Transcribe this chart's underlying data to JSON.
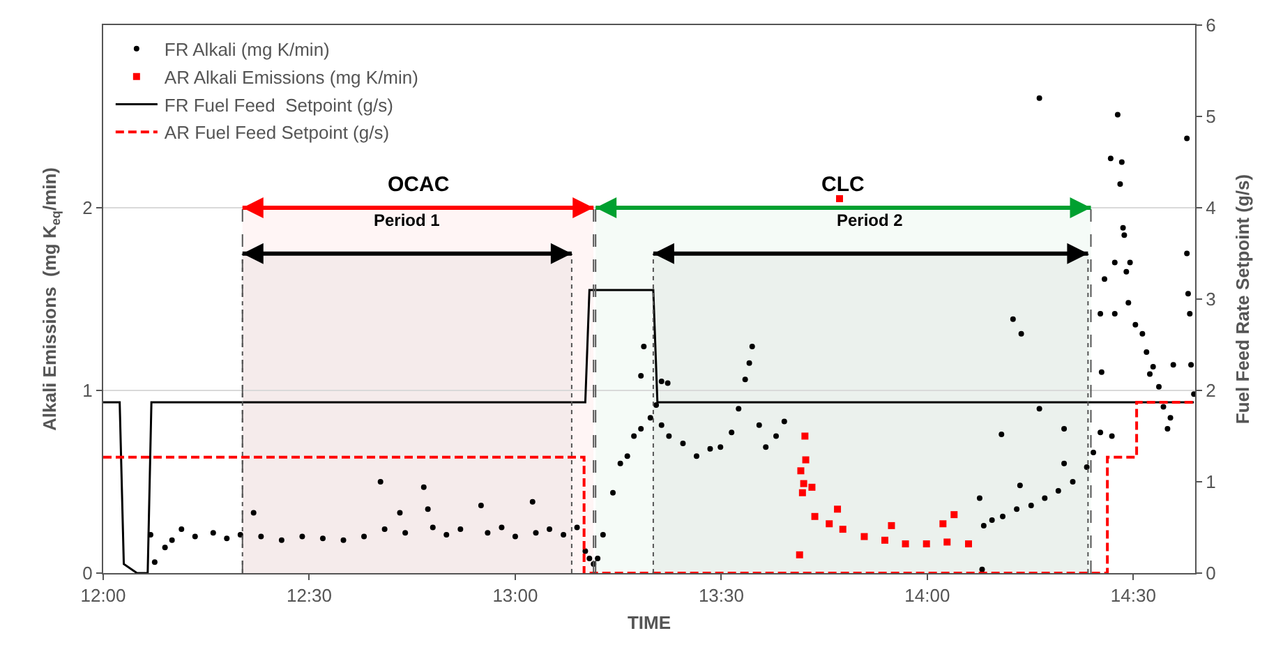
{
  "chart_data": {
    "type": "scatter",
    "xlabel": "TIME",
    "ylabel": "Alkali Emissions  (mg K$_{eq}$/min)",
    "y2label": "Fuel Feed Rate Setpoint (g/s)",
    "xlim": [
      12,
      14.65
    ],
    "xticks": [
      {
        "value": 12,
        "label": "12:00"
      },
      {
        "value": 12.5,
        "label": "12:30"
      },
      {
        "value": 13,
        "label": "13:00"
      },
      {
        "value": 13.5,
        "label": "13:30"
      },
      {
        "value": 14,
        "label": "14:00"
      },
      {
        "value": 14.5,
        "label": "14:30"
      }
    ],
    "ylim": [
      0,
      3
    ],
    "yticks": [
      0,
      1,
      2
    ],
    "y2lim": [
      0,
      6
    ],
    "y2ticks": [
      0,
      1,
      2,
      3,
      4,
      5,
      6
    ],
    "grid": "y",
    "legend": "top left",
    "bands": [
      {
        "axis": "x",
        "from": 12.338,
        "to": 13.19,
        "label": "OCAC",
        "color": "#ff0000"
      },
      {
        "axis": "x",
        "from": 13.195,
        "to": 14.397,
        "label": "CLC",
        "color": "#00a030"
      },
      {
        "axis": "x",
        "from": 12.338,
        "to": 13.137,
        "label": "Period 1"
      },
      {
        "axis": "x",
        "from": 13.335,
        "to": 14.39,
        "label": "Period 2"
      }
    ],
    "series": [
      {
        "name": "FR Alkali (mg K/min)",
        "marker": "circle",
        "color": "#000000",
        "x": [
          12.115,
          12.125,
          12.15,
          12.167,
          12.19,
          12.223,
          12.267,
          12.3,
          12.333,
          12.365,
          12.383,
          12.433,
          12.483,
          12.533,
          12.583,
          12.633,
          12.673,
          12.683,
          12.72,
          12.733,
          12.778,
          12.788,
          12.8,
          12.833,
          12.867,
          12.917,
          12.933,
          12.967,
          13.0,
          13.042,
          13.05,
          13.083,
          13.117,
          13.15,
          13.17,
          13.18,
          13.19,
          13.2,
          13.213,
          13.237,
          13.255,
          13.272,
          13.288,
          13.305,
          13.305,
          13.312,
          13.328,
          13.342,
          13.355,
          13.355,
          13.37,
          13.373,
          13.407,
          13.44,
          13.473,
          13.498,
          13.525,
          13.542,
          13.558,
          13.568,
          13.575,
          13.592,
          13.608,
          13.633,
          13.653,
          14.127,
          14.133,
          14.137,
          14.157,
          14.18,
          14.183,
          14.208,
          14.217,
          14.225,
          14.228,
          14.252,
          14.272,
          14.272,
          14.285,
          14.318,
          14.332,
          14.332,
          14.353,
          14.387,
          14.403,
          14.42,
          14.42,
          14.423,
          14.43,
          14.445,
          14.448,
          14.455,
          14.455,
          14.462,
          14.468,
          14.472,
          14.475,
          14.478,
          14.483,
          14.488,
          14.492,
          14.505,
          14.522,
          14.532,
          14.54,
          14.548,
          14.562,
          14.573,
          14.583,
          14.59,
          14.597,
          14.63,
          14.63,
          14.633,
          14.637,
          14.64,
          14.647
        ],
        "values": [
          0.21,
          0.06,
          0.14,
          0.18,
          0.24,
          0.2,
          0.22,
          0.19,
          0.21,
          0.33,
          0.2,
          0.18,
          0.2,
          0.19,
          0.18,
          0.2,
          0.5,
          0.24,
          0.33,
          0.22,
          0.47,
          0.35,
          0.25,
          0.21,
          0.24,
          0.37,
          0.22,
          0.25,
          0.2,
          0.39,
          0.22,
          0.24,
          0.21,
          0.25,
          0.12,
          0.08,
          0.05,
          0.08,
          0.21,
          0.44,
          0.6,
          0.64,
          0.75,
          0.79,
          1.08,
          1.24,
          0.85,
          0.92,
          0.81,
          1.05,
          1.04,
          0.75,
          0.71,
          0.64,
          0.68,
          0.69,
          0.77,
          0.9,
          1.06,
          1.15,
          1.24,
          0.81,
          0.69,
          0.75,
          0.83,
          0.41,
          0.02,
          0.26,
          0.29,
          0.76,
          0.31,
          1.39,
          0.35,
          0.48,
          1.31,
          0.37,
          0.9,
          2.6,
          0.41,
          0.45,
          0.6,
          0.79,
          0.5,
          0.58,
          0.66,
          0.77,
          1.42,
          1.1,
          1.61,
          2.27,
          0.75,
          1.7,
          1.42,
          2.51,
          2.13,
          2.25,
          1.89,
          1.85,
          1.65,
          1.48,
          1.7,
          1.36,
          1.31,
          1.21,
          1.09,
          1.13,
          1.02,
          0.91,
          0.79,
          0.85,
          1.14,
          2.38,
          1.75,
          1.53,
          1.42,
          1.14,
          0.98
        ]
      },
      {
        "name": "AR Alkali Emissions (mg K/min)",
        "type": "scatter",
        "marker": "square",
        "color": "#ff0000",
        "x": [
          13.69,
          13.693,
          13.697,
          13.7,
          13.703,
          13.705,
          13.72,
          13.727,
          13.762,
          13.782,
          13.787,
          13.795,
          13.847,
          13.897,
          13.913,
          13.947,
          13.998,
          14.038,
          14.048,
          14.065,
          14.1
        ],
        "values": [
          0.1,
          0.56,
          0.44,
          0.49,
          0.75,
          0.62,
          0.47,
          0.31,
          0.27,
          0.35,
          2.05,
          0.24,
          0.2,
          0.18,
          0.26,
          0.16,
          0.16,
          0.27,
          0.17,
          0.32,
          0.16
        ]
      },
      {
        "name": "FR Fuel Feed  Setpoint (g/s)",
        "type": "line",
        "line_style": "solid",
        "color": "#000000",
        "axis": "y2",
        "x": [
          12,
          12.04,
          12.05,
          12.082,
          12.108,
          12.117,
          13.17,
          13.18,
          13.335,
          13.345,
          14.647
        ],
        "values": [
          1.87,
          1.87,
          0.1,
          0,
          0,
          1.87,
          1.87,
          3.1,
          3.1,
          1.87,
          1.87
        ]
      },
      {
        "name": "AR Fuel Feed Setpoint (g/s)",
        "type": "step",
        "line_style": "dashed",
        "color": "#ff0000",
        "axis": "y2",
        "x": [
          12,
          13.167,
          14.437,
          14.508,
          14.647
        ],
        "values": [
          1.27,
          0,
          1.27,
          1.87,
          1.87
        ]
      }
    ]
  }
}
